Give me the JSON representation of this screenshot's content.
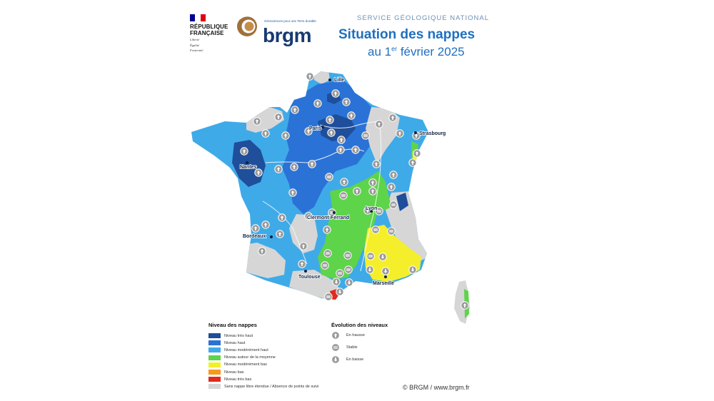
{
  "header": {
    "republique": [
      "RÉPUBLIQUE",
      "FRANÇAISE"
    ],
    "motto": [
      "Liberté",
      "Égalité",
      "Fraternité"
    ],
    "brgm_tagline": "Géosciences pour une Terre durable",
    "brgm_word": "brgm",
    "service": "SERVICE GÉOLOGIQUE NATIONAL",
    "title_line1": "Situation des nappes",
    "title_line2_pre": "au 1",
    "title_line2_sup": "er",
    "title_line2_post": " février 2025"
  },
  "colors": {
    "tres_haut": "#1f4e9a",
    "haut": "#2a72d6",
    "moderement_haut": "#3faae8",
    "moyenne": "#5ed44a",
    "moderement_bas": "#f4ef2a",
    "bas": "#f39a1f",
    "tres_bas": "#e02a1e",
    "sans_nappe": "#d6d6d6",
    "flag_blue": "#000091",
    "flag_red": "#e1000f",
    "brgm_brown": "#a0703a"
  },
  "cities": [
    {
      "name": "Lille"
    },
    {
      "name": "Paris"
    },
    {
      "name": "Strasbourg"
    },
    {
      "name": "Nantes"
    },
    {
      "name": "Clermont-Ferrand"
    },
    {
      "name": "Lyon"
    },
    {
      "name": "Bordeaux"
    },
    {
      "name": "Toulouse"
    },
    {
      "name": "Marseille"
    }
  ],
  "legend_niveau": {
    "title": "Niveau des nappes",
    "items": [
      {
        "label": "Niveau très haut",
        "color": "#1f4e9a"
      },
      {
        "label": "Niveau haut",
        "color": "#2a72d6"
      },
      {
        "label": "Niveau modérément haut",
        "color": "#3faae8"
      },
      {
        "label": "Niveau autour de la moyenne",
        "color": "#5ed44a"
      },
      {
        "label": "Niveau modérément bas",
        "color": "#f4ef2a"
      },
      {
        "label": "Niveau bas",
        "color": "#f39a1f"
      },
      {
        "label": "Niveau très bas",
        "color": "#e02a1e"
      },
      {
        "label": "Sans nappe libre étendue / Absence de points de suivi",
        "color": "#d6d6d6"
      }
    ]
  },
  "legend_evolution": {
    "title": "Évolution des niveaux",
    "items": [
      {
        "label": "En hausse",
        "icon": "arrow-up-icon"
      },
      {
        "label": "Stable",
        "icon": "equal-icon"
      },
      {
        "label": "En baisse",
        "icon": "arrow-down-icon"
      }
    ]
  },
  "copyright": "© BRGM / www.brgm.fr"
}
